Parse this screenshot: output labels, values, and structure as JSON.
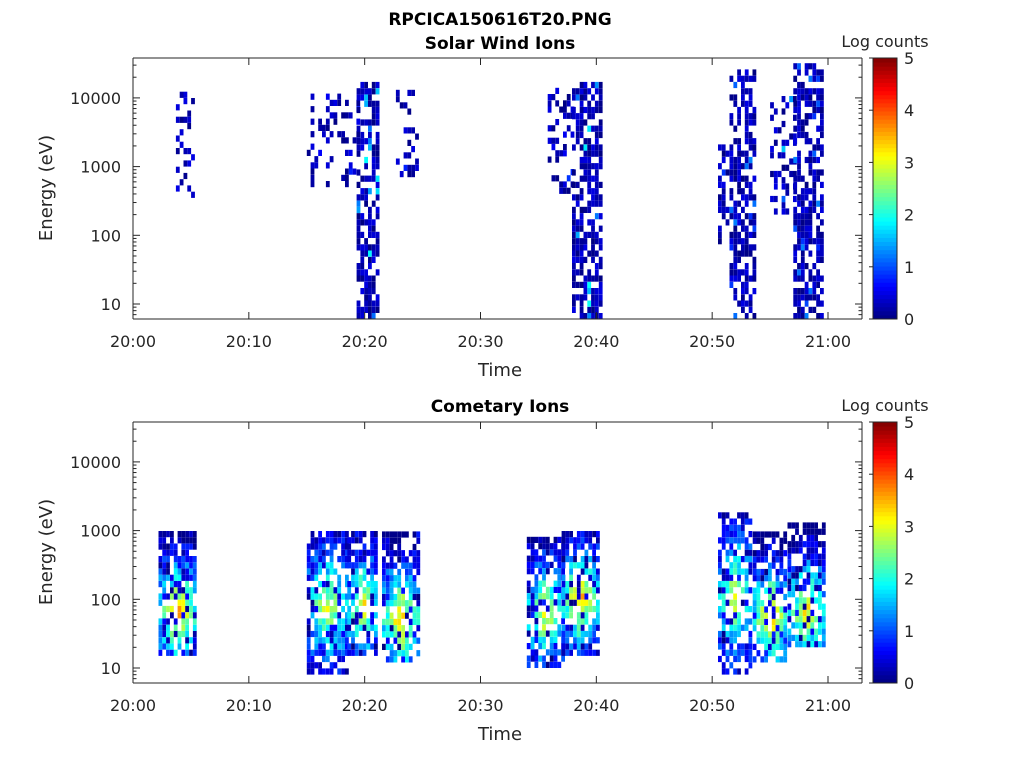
{
  "chart_data": [
    {
      "type": "heatmap",
      "title": "RPCICA150616T20.PNG",
      "subtitle": "Solar Wind Ions",
      "xlabel": "Time",
      "ylabel": "Energy (eV)",
      "xlim_minutes_after_20_00": [
        0,
        63
      ],
      "ylim_eV": [
        6,
        38000
      ],
      "yscale": "log",
      "xticks": [
        "20:00",
        "20:10",
        "20:20",
        "20:30",
        "20:40",
        "20:50",
        "21:00"
      ],
      "yticks": [
        "10",
        "100",
        "1000",
        "10000"
      ],
      "colorbar": {
        "label": "Log counts",
        "range": [
          0,
          5
        ],
        "ticks": [
          "0",
          "1",
          "2",
          "3",
          "4",
          "5"
        ]
      },
      "bursts": [
        {
          "t": [
            3.7,
            5.2
          ],
          "e": [
            350,
            12000
          ],
          "density": 0.35,
          "peak": 0.7
        },
        {
          "t": [
            15,
            19.3
          ],
          "e": [
            500,
            10000
          ],
          "density": 0.3,
          "peak": 0.8
        },
        {
          "t": [
            19.3,
            21
          ],
          "e": [
            6,
            14000
          ],
          "density": 0.65,
          "peak": 1.9
        },
        {
          "t": [
            22.7,
            24.5
          ],
          "e": [
            700,
            12000
          ],
          "density": 0.3,
          "peak": 0.8
        },
        {
          "t": [
            35.8,
            37.9
          ],
          "e": [
            400,
            12000
          ],
          "density": 0.3,
          "peak": 0.9
        },
        {
          "t": [
            37.9,
            40.5
          ],
          "e": [
            6,
            14000
          ],
          "density": 0.65,
          "peak": 2.0
        },
        {
          "t": [
            50.5,
            51.2
          ],
          "e": [
            60,
            2000
          ],
          "density": 0.5,
          "peak": 1.2
        },
        {
          "t": [
            51.5,
            53.5
          ],
          "e": [
            6,
            25000
          ],
          "density": 0.65,
          "peak": 1.3
        },
        {
          "t": [
            55,
            57
          ],
          "e": [
            200,
            10000
          ],
          "density": 0.35,
          "peak": 1.8
        },
        {
          "t": [
            57,
            59.5
          ],
          "e": [
            6,
            30000
          ],
          "density": 0.65,
          "peak": 1.3
        }
      ]
    },
    {
      "type": "heatmap",
      "title": "Cometary Ions",
      "xlabel": "Time",
      "ylabel": "Energy (eV)",
      "xlim_minutes_after_20_00": [
        0,
        63
      ],
      "ylim_eV": [
        6,
        38000
      ],
      "yscale": "log",
      "xticks": [
        "20:00",
        "20:10",
        "20:20",
        "20:30",
        "20:40",
        "20:50",
        "21:00"
      ],
      "yticks": [
        "10",
        "100",
        "1000",
        "10000"
      ],
      "colorbar": {
        "label": "Log counts",
        "range": [
          0,
          5
        ],
        "ticks": [
          "0",
          "1",
          "2",
          "3",
          "4",
          "5"
        ]
      },
      "bursts": [
        {
          "t": [
            2.2,
            5.3
          ],
          "e": [
            15,
            900
          ],
          "center": 60,
          "density": 0.75,
          "peak": 3.6
        },
        {
          "t": [
            15,
            18.5
          ],
          "e": [
            8,
            800
          ],
          "center": 70,
          "density": 0.75,
          "peak": 3.0
        },
        {
          "t": [
            18.5,
            21
          ],
          "e": [
            15,
            900
          ],
          "center": 70,
          "density": 0.75,
          "peak": 3.3
        },
        {
          "t": [
            21.5,
            24.5
          ],
          "e": [
            12,
            900
          ],
          "center": 45,
          "density": 0.75,
          "peak": 3.5
        },
        {
          "t": [
            34,
            37
          ],
          "e": [
            10,
            700
          ],
          "center": 55,
          "density": 0.75,
          "peak": 3.2
        },
        {
          "t": [
            37,
            40
          ],
          "e": [
            15,
            900
          ],
          "center": 90,
          "density": 0.75,
          "peak": 3.6
        },
        {
          "t": [
            50.5,
            53.2
          ],
          "e": [
            8,
            1500
          ],
          "center": 100,
          "density": 0.7,
          "peak": 3.0
        },
        {
          "t": [
            53.5,
            56.3
          ],
          "e": [
            12,
            800
          ],
          "center": 50,
          "density": 0.75,
          "peak": 3.6
        },
        {
          "t": [
            56.5,
            59.5
          ],
          "e": [
            20,
            1200
          ],
          "center": 60,
          "density": 0.75,
          "peak": 3.3
        }
      ]
    }
  ]
}
